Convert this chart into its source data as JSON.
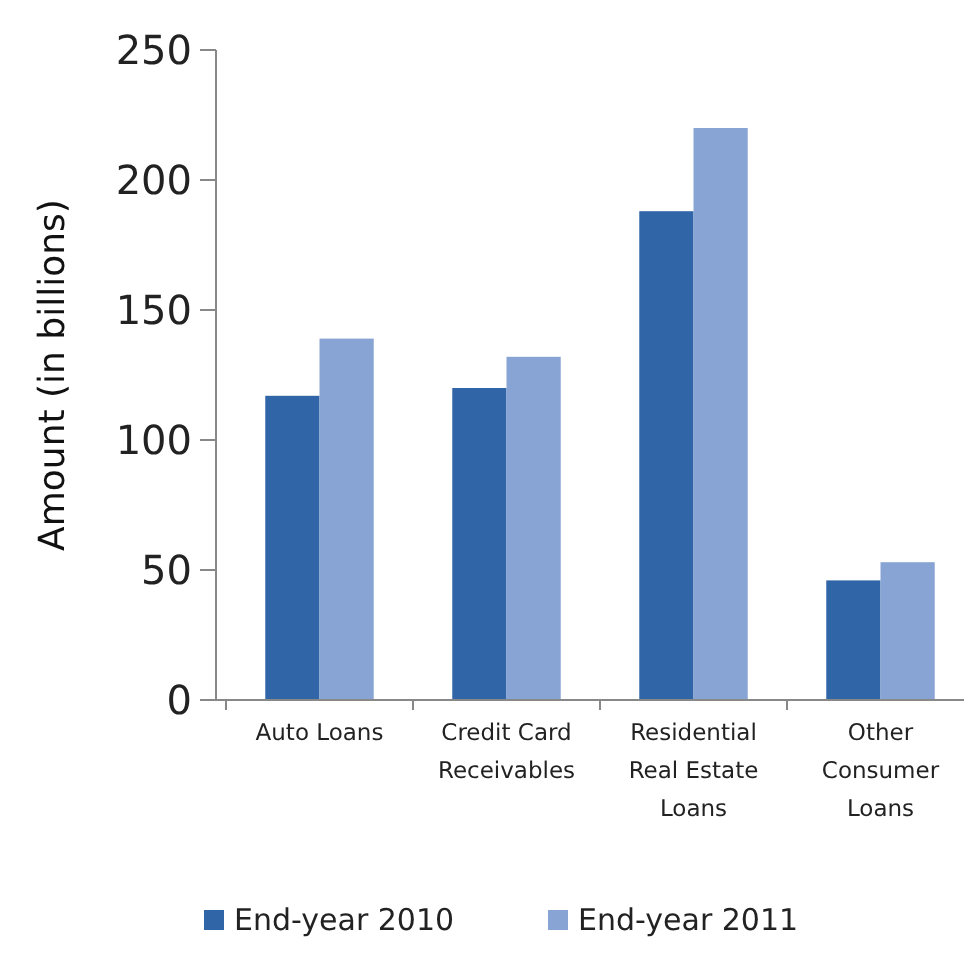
{
  "chart_data": {
    "type": "bar",
    "ylabel": "Amount (in billions)",
    "categories": [
      "Auto Loans",
      "Credit Card Receivables",
      "Residential Real Estate Loans",
      "Other Consumer Loans"
    ],
    "series": [
      {
        "name": "End-year 2010",
        "color": "#3065a8",
        "values": [
          117,
          120,
          188,
          46
        ]
      },
      {
        "name": "End-year 2011",
        "color": "#88a4d4",
        "values": [
          139,
          132,
          220,
          53
        ]
      }
    ],
    "ylim": [
      0,
      250
    ],
    "yticks": [
      0,
      50,
      100,
      150,
      200,
      250
    ],
    "legend": "bottom"
  }
}
